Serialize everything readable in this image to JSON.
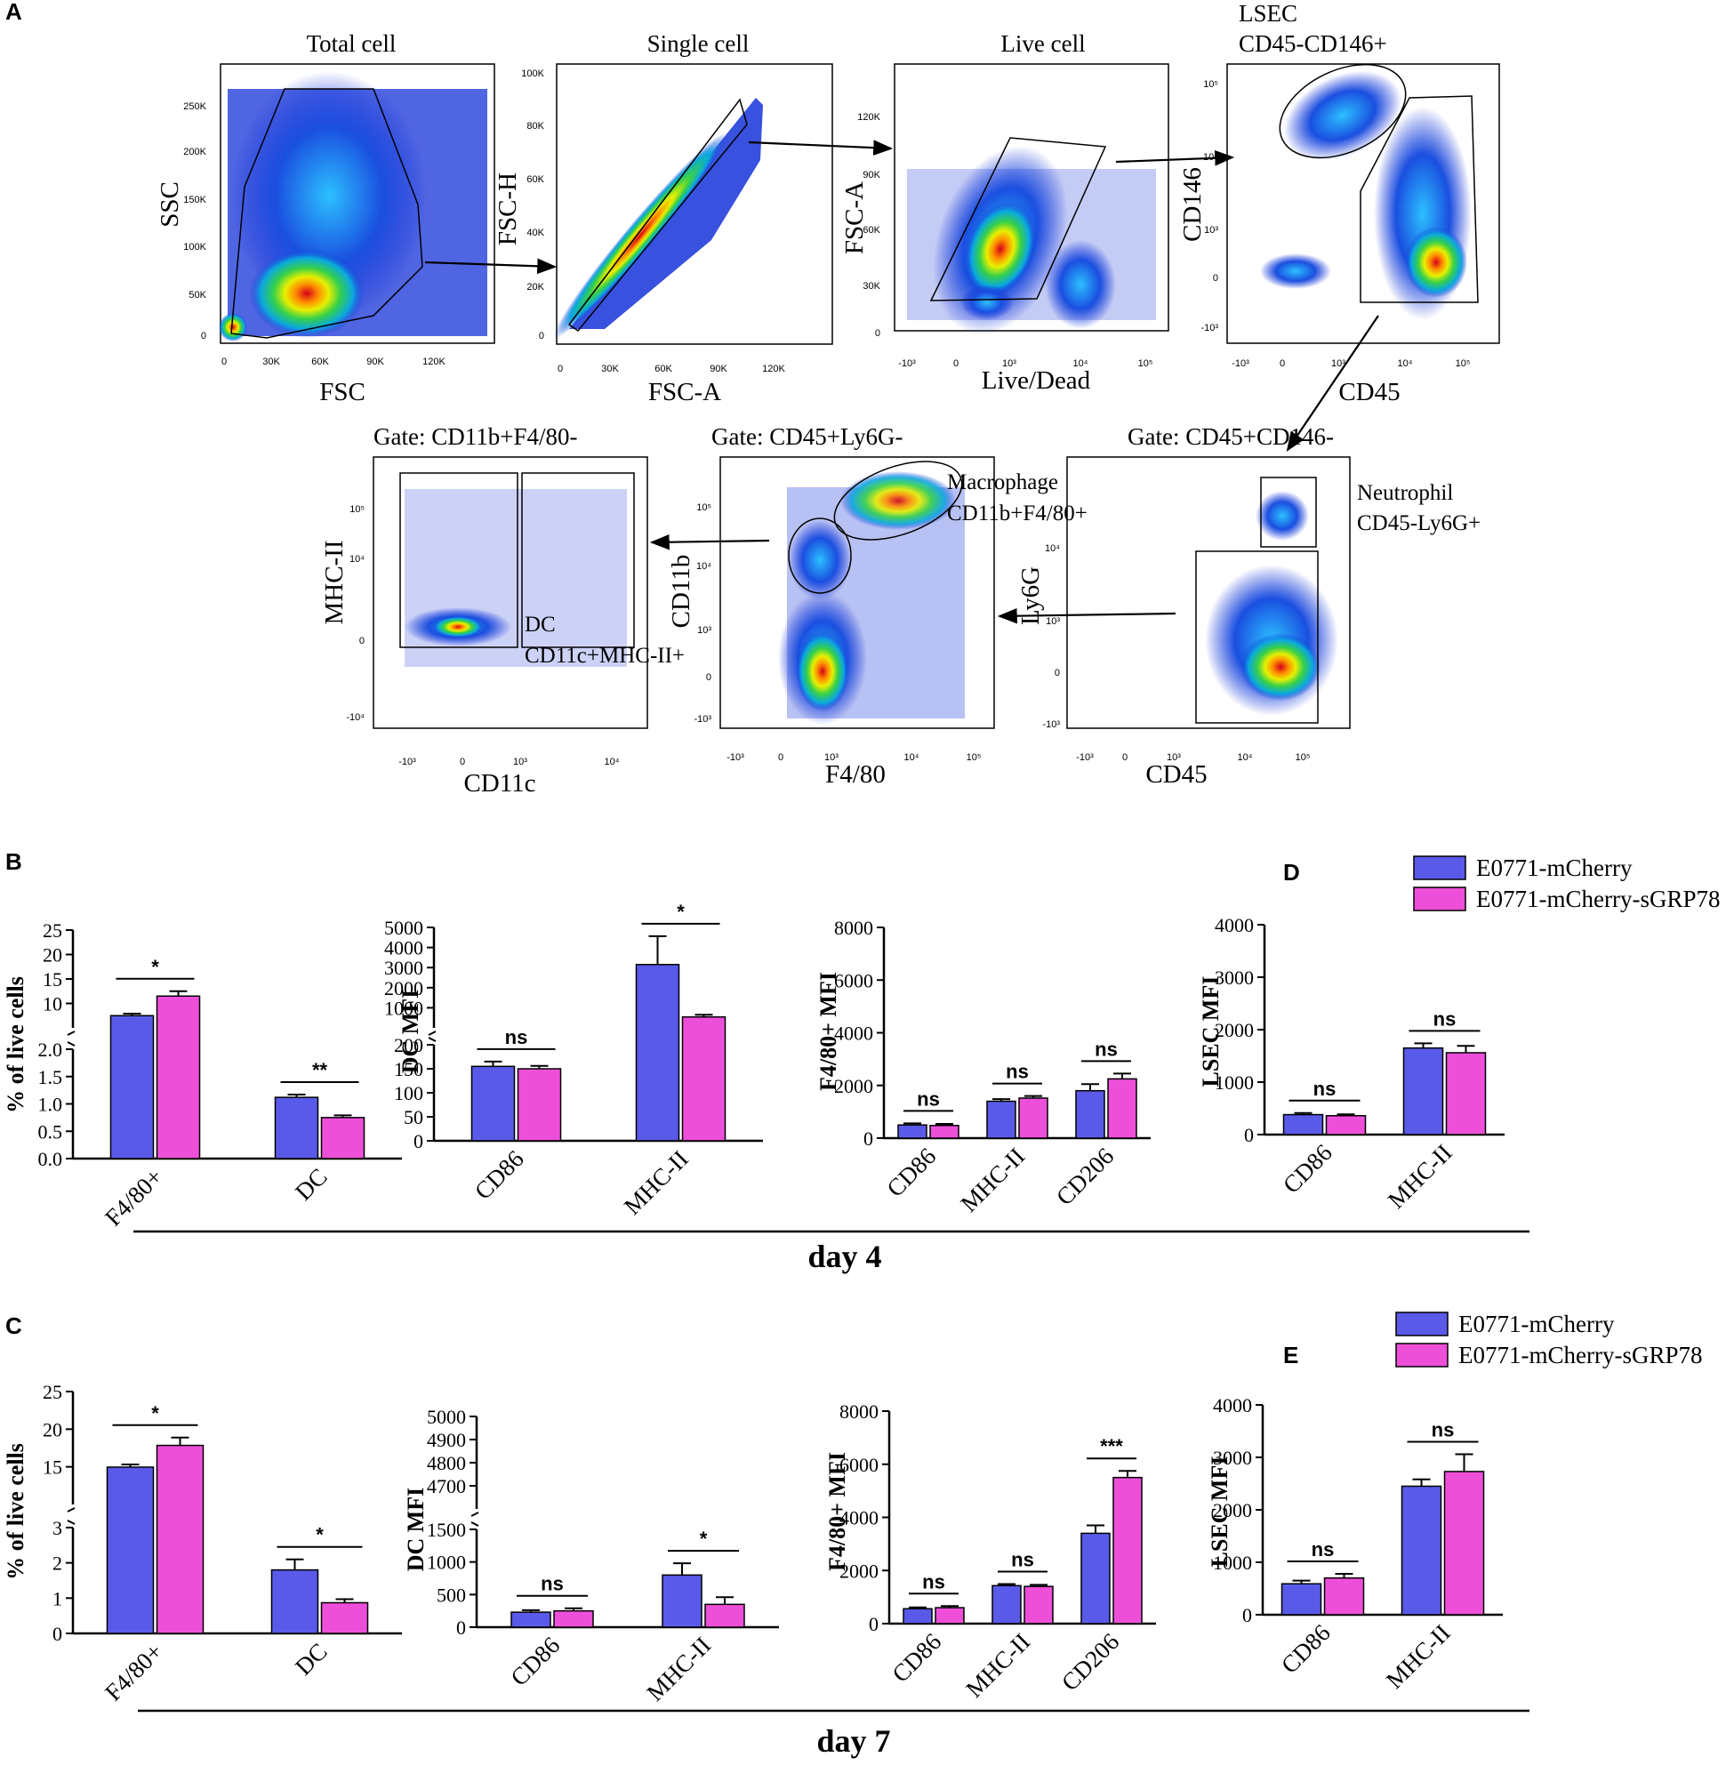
{
  "panel_labels": {
    "A": "A",
    "B": "B",
    "C": "C",
    "D": "D",
    "E": "E"
  },
  "colors": {
    "series1": "#5a5ae8",
    "series2": "#ee4fd9"
  },
  "flow": {
    "plots": [
      {
        "id": "total",
        "title": "Total cell",
        "xlabel": "FSC",
        "ylabel": "SSC",
        "xticks": [
          "0",
          "30K",
          "60K",
          "90K",
          "120K"
        ],
        "yticks": [
          "250K",
          "200K",
          "150K",
          "100K",
          "50K",
          "0"
        ]
      },
      {
        "id": "single",
        "title": "Single cell",
        "xlabel": "FSC-A",
        "ylabel": "FSC-H",
        "xticks": [
          "0",
          "30K",
          "60K",
          "90K",
          "120K"
        ],
        "yticks": [
          "100K",
          "80K",
          "60K",
          "40K",
          "20K",
          "0"
        ]
      },
      {
        "id": "live",
        "title": "Live cell",
        "xlabel": "Live/Dead",
        "ylabel": "FSC-A",
        "xticks": [
          "-10³",
          "0",
          "10³",
          "10⁴",
          "10⁵"
        ],
        "yticks": [
          "120K",
          "90K",
          "60K",
          "30K",
          "0"
        ]
      },
      {
        "id": "lsec",
        "title": "LSEC",
        "title2": "CD45-CD146+",
        "xlabel": "CD45",
        "ylabel": "CD146",
        "xticks": [
          "-10³",
          "0",
          "10³",
          "10⁴",
          "10⁵"
        ],
        "yticks": [
          "10⁵",
          "10⁴",
          "10³",
          "0",
          "-10³"
        ]
      },
      {
        "id": "neut",
        "title": "Gate: CD45+CD146-",
        "xlabel": "CD45",
        "ylabel": "Ly6G",
        "xticks": [
          "-10³",
          "0",
          "10³",
          "10⁴",
          "10⁵"
        ],
        "yticks": [
          "10⁴",
          "10³",
          "0",
          "-10³"
        ],
        "ann1": "Neutrophil",
        "ann2": "CD45-Ly6G+"
      },
      {
        "id": "mac",
        "title": "Gate: CD45+Ly6G-",
        "xlabel": "F4/80",
        "ylabel": "CD11b",
        "xticks": [
          "-10³",
          "0",
          "10³",
          "10⁴",
          "10⁵"
        ],
        "yticks": [
          "10⁵",
          "10⁴",
          "10³",
          "0",
          "-10³"
        ],
        "ann1": "Macrophage",
        "ann2": "CD11b+F4/80+"
      },
      {
        "id": "dc",
        "title": "Gate: CD11b+F4/80-",
        "xlabel": "CD11c",
        "ylabel": "MHC-II",
        "xticks": [
          "-10³",
          "0",
          "10³",
          "10⁴"
        ],
        "yticks": [
          "10⁵",
          "10⁴",
          "0",
          "-10⁴"
        ],
        "ann1": "DC",
        "ann2": "CD11c+MHC-II+"
      }
    ]
  },
  "legend": {
    "items": [
      "E0771-mCherry",
      "E0771-mCherry-sGRP78"
    ]
  },
  "days": {
    "day4": "day 4",
    "day7": "day 7"
  },
  "chart_data": [
    {
      "id": "B1",
      "type": "bar",
      "title": "",
      "ylabel": "% of live cells",
      "categories": [
        "F4/80+",
        "DC"
      ],
      "series": [
        {
          "name": "E0771-mCherry",
          "values": [
            7.5,
            1.12
          ],
          "errors": [
            0.4,
            0.05
          ]
        },
        {
          "name": "E0771-mCherry-sGRP78",
          "values": [
            11.5,
            0.75
          ],
          "errors": [
            1.0,
            0.04
          ]
        }
      ],
      "broken_y": {
        "lower": [
          0,
          2.0
        ],
        "upper": [
          5,
          25
        ]
      },
      "yticks_lower": [
        "0.0",
        "0.5",
        "1.0",
        "1.5",
        "2.0"
      ],
      "yticks_upper": [
        "10",
        "15",
        "20",
        "25"
      ],
      "significance": [
        "*",
        "**"
      ]
    },
    {
      "id": "B2",
      "type": "bar",
      "ylabel": "DC MFI",
      "categories": [
        "CD86",
        "MHC-II"
      ],
      "series": [
        {
          "name": "E0771-mCherry",
          "values": [
            155,
            3300
          ],
          "errors": [
            10,
            1300
          ]
        },
        {
          "name": "E0771-mCherry-sGRP78",
          "values": [
            150,
            900
          ],
          "errors": [
            6,
            100
          ]
        }
      ],
      "broken_y": {
        "lower": [
          0,
          200
        ],
        "upper": [
          400,
          5000
        ]
      },
      "yticks_lower": [
        "0",
        "50",
        "100",
        "150",
        "200"
      ],
      "yticks_upper": [
        "1000",
        "2000",
        "3000",
        "4000",
        "5000"
      ],
      "significance": [
        "ns",
        "*"
      ]
    },
    {
      "id": "B3",
      "type": "bar",
      "ylabel": "F4/80+ MFI",
      "categories": [
        "CD86",
        "MHC-II",
        "CD206"
      ],
      "series": [
        {
          "name": "E0771-mCherry",
          "values": [
            500,
            1400,
            1800
          ],
          "errors": [
            60,
            80,
            250
          ]
        },
        {
          "name": "E0771-mCherry-sGRP78",
          "values": [
            480,
            1520,
            2250
          ],
          "errors": [
            60,
            80,
            200
          ]
        }
      ],
      "ylim": [
        0,
        8000
      ],
      "yticks": [
        "0",
        "2000",
        "4000",
        "6000",
        "8000"
      ],
      "significance": [
        "ns",
        "ns",
        "ns"
      ]
    },
    {
      "id": "D",
      "type": "bar",
      "ylabel": "LSEC MFI",
      "categories": [
        "CD86",
        "MHC-II"
      ],
      "series": [
        {
          "name": "E0771-mCherry",
          "values": [
            380,
            1650
          ],
          "errors": [
            30,
            90
          ]
        },
        {
          "name": "E0771-mCherry-sGRP78",
          "values": [
            360,
            1560
          ],
          "errors": [
            25,
            130
          ]
        }
      ],
      "ylim": [
        0,
        4000
      ],
      "yticks": [
        "0",
        "1000",
        "2000",
        "3000",
        "4000"
      ],
      "significance": [
        "ns",
        "ns"
      ]
    },
    {
      "id": "C1",
      "type": "bar",
      "ylabel": "% of live cells",
      "categories": [
        "F4/80+",
        "DC"
      ],
      "series": [
        {
          "name": "E0771-mCherry",
          "values": [
            16.3,
            1.8
          ],
          "errors": [
            0.3,
            0.3
          ]
        },
        {
          "name": "E0771-mCherry-sGRP78",
          "values": [
            18.8,
            0.87
          ],
          "errors": [
            0.9,
            0.1
          ]
        }
      ],
      "broken_y": {
        "lower": [
          0,
          3
        ],
        "upper": [
          12,
          25
        ]
      },
      "yticks_lower": [
        "0",
        "1",
        "2",
        "3"
      ],
      "yticks_upper": [
        "15",
        "20",
        "25"
      ],
      "significance": [
        "*",
        "*"
      ]
    },
    {
      "id": "C2",
      "type": "bar",
      "ylabel": "DC MFI",
      "categories": [
        "CD86",
        "MHC-II"
      ],
      "series": [
        {
          "name": "E0771-mCherry",
          "values": [
            230,
            800
          ],
          "errors": [
            30,
            180
          ]
        },
        {
          "name": "E0771-mCherry-sGRP78",
          "values": [
            250,
            350
          ],
          "errors": [
            40,
            110
          ]
        }
      ],
      "broken_y": {
        "lower": [
          0,
          1500
        ],
        "upper": [
          4650,
          5000
        ]
      },
      "yticks_lower": [
        "0",
        "500",
        "1000",
        "1500"
      ],
      "yticks_upper": [
        "4700",
        "4800",
        "4900",
        "5000"
      ],
      "significance": [
        "ns",
        "*"
      ]
    },
    {
      "id": "C3",
      "type": "bar",
      "ylabel": "F4/80+ MFI",
      "categories": [
        "CD86",
        "MHC-II",
        "CD206"
      ],
      "series": [
        {
          "name": "E0771-mCherry",
          "values": [
            560,
            1430,
            3400
          ],
          "errors": [
            50,
            60,
            300
          ]
        },
        {
          "name": "E0771-mCherry-sGRP78",
          "values": [
            600,
            1400,
            5500
          ],
          "errors": [
            60,
            60,
            250
          ]
        }
      ],
      "ylim": [
        0,
        8000
      ],
      "yticks": [
        "0",
        "2000",
        "4000",
        "6000",
        "8000"
      ],
      "significance": [
        "ns",
        "ns",
        "***"
      ]
    },
    {
      "id": "E",
      "type": "bar",
      "ylabel": "LSEC MFI",
      "categories": [
        "CD86",
        "MHC-II"
      ],
      "series": [
        {
          "name": "E0771-mCherry",
          "values": [
            590,
            2450
          ],
          "errors": [
            60,
            130
          ]
        },
        {
          "name": "E0771-mCherry-sGRP78",
          "values": [
            700,
            2730
          ],
          "errors": [
            80,
            330
          ]
        }
      ],
      "ylim": [
        0,
        4000
      ],
      "yticks": [
        "0",
        "1000",
        "2000",
        "3000",
        "4000"
      ],
      "significance": [
        "ns",
        "ns"
      ]
    }
  ]
}
